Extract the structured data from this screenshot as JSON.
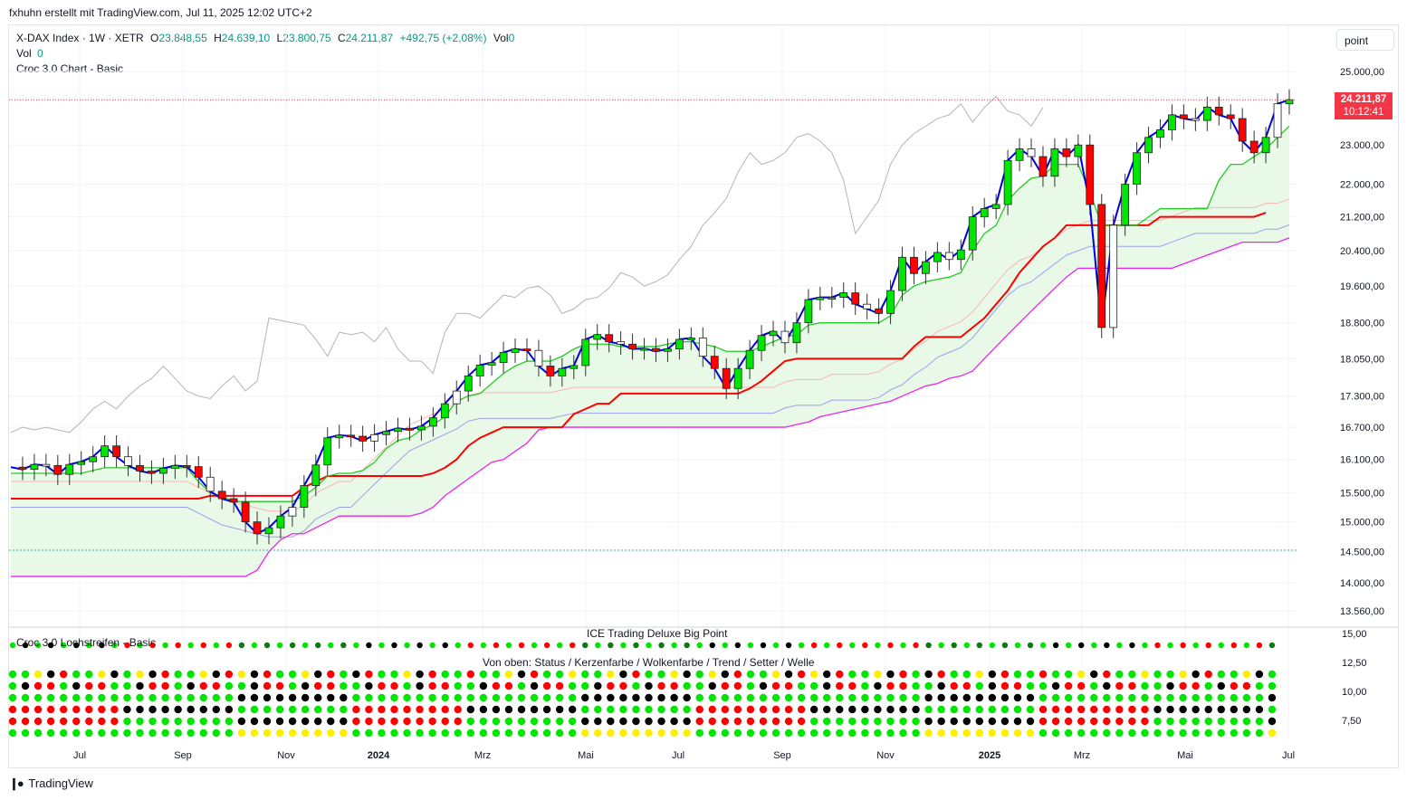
{
  "header": {
    "created_by": "fxhuhn erstellt mit TradingView.com, Jul 11, 2025 12:02 UTC+2"
  },
  "legend": {
    "symbol": "X-DAX Index · 1W · XETR",
    "o_label": "O",
    "o_value": "23.848,55",
    "h_label": "H",
    "h_value": "24.639,10",
    "l_label": "L",
    "l_value": "23.800,75",
    "c_label": "C",
    "c_value": "24.211,87",
    "change": "+492,75 (+2,08%)",
    "vol_label": "Vol",
    "vol_value": "0",
    "vol_row_label": "Vol",
    "vol_row_value": "0",
    "indicator": "Croc 3.0 Chart - Basic"
  },
  "scale_button": {
    "label": "point"
  },
  "price_tag": {
    "price": "24.211,87",
    "countdown": "10:12:41"
  },
  "lower_pane": {
    "title": "ICE Trading Deluxe Big Point",
    "left_label": "Croc 3.0 Lochstreifen - Basic",
    "subtitle": "Von oben: Status / Kerzenfarbe / Wolkenfarbe / Trend / Setter / Welle",
    "y_ticks": [
      "15,00",
      "12,50",
      "10,00",
      "7,50"
    ]
  },
  "footer": {
    "brand": "TradingView"
  },
  "colors": {
    "up": "#00e600",
    "down": "#ff0000",
    "blue": "#0000dd",
    "red_line": "#ff0000",
    "magenta": "#ee22ee",
    "green_line": "#22cc22",
    "gray_line": "#b5b5b5",
    "cloud": "#e8f9e8",
    "dot_dark": "#000000",
    "dot_darkgreen": "#117711"
  },
  "chart_data": {
    "type": "line",
    "title": "X-DAX Index · 1W · XETR",
    "y_ticks": [
      "25.000,00",
      "23.000,00",
      "22.000,00",
      "21.200,00",
      "20.400,00",
      "19.600,00",
      "18.800,00",
      "18.050,00",
      "17.300,00",
      "16.700,00",
      "16.100,00",
      "15.500,00",
      "15.000,00",
      "14.500,00",
      "14.000,00",
      "13.560,00"
    ],
    "x_ticks": [
      "Jul",
      "Sep",
      "Nov",
      "2024",
      "Mrz",
      "Mai",
      "Jul",
      "Sep",
      "Nov",
      "2025",
      "Mrz",
      "Mai",
      "Jul"
    ],
    "y_scale": "log",
    "ylim": [
      13300,
      25500
    ],
    "series": [
      {
        "values": [
          15960,
          15920,
          16010,
          15990,
          15830,
          16010,
          16060,
          16150,
          16350,
          16150,
          15990,
          15890,
          15850,
          15940,
          15990,
          15970,
          15780,
          15530,
          15400,
          15340,
          15000,
          14800,
          14900,
          15100,
          15250,
          15630,
          16000,
          16500,
          16550,
          16530,
          16440,
          16560,
          16620,
          16680,
          16650,
          16720,
          16880,
          17150,
          17400,
          17700,
          17920,
          17970,
          18180,
          18250,
          18220,
          17900,
          17700,
          17850,
          17910,
          18450,
          18550,
          18400,
          18350,
          18250,
          18260,
          18200,
          18250,
          18450,
          18480,
          18100,
          17850,
          17450,
          17850,
          18220,
          18530,
          18620,
          18380,
          18800,
          19300,
          19350,
          19350,
          19450,
          19200,
          19100,
          19000,
          19500,
          20250,
          19880,
          20150,
          20360,
          20200,
          20420,
          21200,
          21400,
          21500,
          22600,
          22900,
          22700,
          22200,
          22900,
          22700,
          23000,
          21500,
          18700,
          21000,
          22000,
          22800,
          23200,
          23400,
          23800,
          23700,
          23650,
          24010,
          23800,
          23700,
          23100,
          22800,
          23200,
          24100,
          24212
        ]
      },
      {
        "values": [
          15850,
          15850,
          15850,
          15850,
          15850,
          15850,
          15850,
          15900,
          15950,
          15950,
          15950,
          15950,
          15950,
          15950,
          15950,
          15950,
          15700,
          15500,
          15450,
          15350,
          15350,
          15350,
          15350,
          15350,
          15350,
          15450,
          15600,
          15800,
          15850,
          15850,
          15900,
          16050,
          16300,
          16450,
          16500,
          16650,
          16750,
          16900,
          17200,
          17300,
          17350,
          17550,
          17750,
          17900,
          18000,
          18000,
          18000,
          18100,
          18250,
          18350,
          18350,
          18350,
          18300,
          18300,
          18300,
          18300,
          18350,
          18400,
          18400,
          18350,
          18300,
          18200,
          18200,
          18200,
          18300,
          18400,
          18500,
          18550,
          18750,
          18800,
          18800,
          18800,
          18800,
          18800,
          18800,
          18950,
          19400,
          19600,
          19700,
          19750,
          19800,
          19900,
          20400,
          20800,
          21000,
          21600,
          21900,
          22150,
          22200,
          22500,
          22500,
          22500,
          21800,
          21000,
          21000,
          21000,
          21000,
          21200,
          21400,
          21400,
          21400,
          21400,
          21400,
          22100,
          22500,
          22500,
          22700,
          22900,
          23200,
          23500
        ]
      },
      {
        "values": [
          15400,
          15400,
          15400,
          15400,
          15400,
          15400,
          15400,
          15400,
          15400,
          15400,
          15400,
          15400,
          15400,
          15400,
          15400,
          15400,
          15400,
          15450,
          15450,
          15450,
          15450,
          15450,
          15450,
          15450,
          15450,
          15600,
          15700,
          15800,
          15800,
          15800,
          15800,
          15800,
          15800,
          15800,
          15800,
          15800,
          15850,
          15950,
          16100,
          16350,
          16500,
          16600,
          16700,
          16700,
          16700,
          16700,
          16700,
          16700,
          16950,
          17050,
          17150,
          17150,
          17350,
          17350,
          17350,
          17350,
          17350,
          17350,
          17350,
          17350,
          17350,
          17350,
          17350,
          17450,
          17600,
          17800,
          18000,
          18050,
          18050,
          18050,
          18050,
          18050,
          18050,
          18050,
          18050,
          18050,
          18050,
          18300,
          18500,
          18500,
          18500,
          18500,
          18700,
          18900,
          19200,
          19500,
          19900,
          20200,
          20500,
          20700,
          21000,
          21000,
          21000,
          21000,
          21000,
          21000,
          21000,
          21000,
          21200,
          21200,
          21200,
          21200,
          21200,
          21200,
          21200,
          21200,
          21200,
          21300
        ]
      },
      {
        "values": [
          15100,
          15100,
          15100,
          15100,
          15100,
          15100,
          15100,
          15100,
          15100,
          15100,
          15100,
          15100,
          15100,
          15100,
          15100,
          15100,
          15000,
          14900,
          14800,
          14750,
          14700,
          14650,
          14600,
          14600,
          14600,
          14700,
          14900,
          15000,
          15100,
          15100,
          15300,
          15500,
          15700,
          15900,
          16100,
          16200,
          16300,
          16400,
          16500,
          16650,
          16700,
          16700,
          16700,
          16700,
          16700,
          16700,
          16700,
          16750,
          16800,
          16800,
          16800,
          16800,
          16800,
          16800,
          16800,
          16800,
          16800,
          16800,
          16800,
          16800,
          16800,
          16800,
          16800,
          16800,
          16800,
          16800,
          16900,
          16950,
          16950,
          16950,
          17050,
          17050,
          17050,
          17050,
          17100,
          17250,
          17350,
          17550,
          17700,
          17900,
          18000,
          18100,
          18300,
          18600,
          18900,
          19200,
          19400,
          19500,
          19700,
          19900,
          20100,
          20200,
          20300,
          20300,
          20300,
          20300,
          20300,
          20300,
          20300,
          20400,
          20500,
          20600,
          20600,
          20600,
          20600,
          20600,
          20600,
          20700,
          20700,
          20800
        ]
      },
      {
        "values": [
          14100,
          14100,
          14100,
          14100,
          14100,
          14100,
          14100,
          14100,
          14100,
          14100,
          14100,
          14100,
          14100,
          14100,
          14100,
          14100,
          14100,
          14100,
          14100,
          14100,
          14100,
          14200,
          14500,
          14700,
          14800,
          14800,
          14900,
          15000,
          15100,
          15100,
          15100,
          15100,
          15100,
          15100,
          15100,
          15150,
          15250,
          15450,
          15600,
          15750,
          15900,
          16050,
          16100,
          16250,
          16400,
          16650,
          16700,
          16700,
          16700,
          16700,
          16700,
          16700,
          16700,
          16700,
          16700,
          16700,
          16700,
          16700,
          16700,
          16700,
          16700,
          16700,
          16700,
          16700,
          16700,
          16700,
          16700,
          16750,
          16800,
          16900,
          16950,
          17000,
          17050,
          17100,
          17150,
          17200,
          17300,
          17400,
          17500,
          17550,
          17650,
          17700,
          17800,
          18050,
          18300,
          18550,
          18800,
          19050,
          19300,
          19550,
          19800,
          20000,
          20000,
          20000,
          20000,
          20000,
          20000,
          20000,
          20000,
          20000,
          20100,
          20200,
          20300,
          20400,
          20500,
          20600,
          20600,
          20600,
          20600,
          20700
        ]
      }
    ],
    "gray_line": [
      16600,
      16700,
      16650,
      16700,
      16650,
      16600,
      16800,
      17050,
      17200,
      17050,
      17300,
      17500,
      17650,
      17900,
      17650,
      17400,
      17300,
      17250,
      17500,
      17700,
      17400,
      17600,
      18900,
      18850,
      18800,
      18750,
      18450,
      18100,
      18600,
      18550,
      18600,
      18400,
      18700,
      18250,
      18000,
      18000,
      17750,
      18600,
      19000,
      19000,
      18900,
      19150,
      19400,
      19350,
      19550,
      19600,
      19400,
      19000,
      19100,
      19300,
      19350,
      19550,
      19900,
      19800,
      19600,
      19700,
      19850,
      20200,
      20500,
      21000,
      21300,
      21650,
      22300,
      22800,
      22500,
      22600,
      22800,
      23200,
      23300,
      23100,
      22800,
      22100,
      20800,
      21200,
      21600,
      22500,
      23000,
      23300,
      23500,
      23700,
      23800,
      24100,
      23600,
      24000,
      24300,
      23900,
      23800,
      23500,
      24000
    ]
  }
}
